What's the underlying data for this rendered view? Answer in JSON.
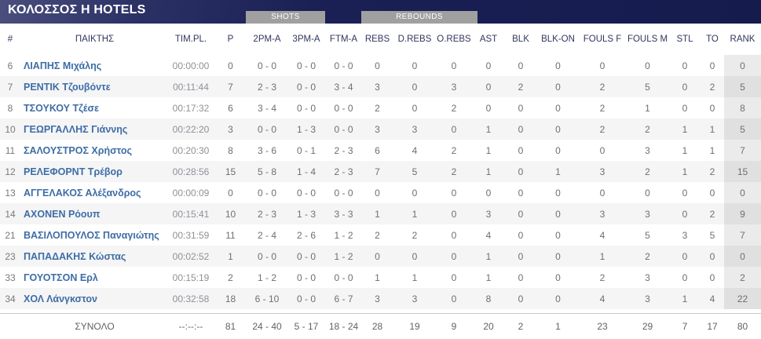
{
  "header": {
    "title": "ΚΟΛΟΣΣΟΣ Η HOTELS",
    "group_labels": {
      "shots": "SHOTS",
      "rebounds": "REBOUNDS"
    }
  },
  "colors": {
    "navy_dark": "#151b4d",
    "navy_light": "#4a4f7d",
    "group_box_gray": "#a0a0a0",
    "player_link_blue": "#3e6da6",
    "row_stripe": "#f5f5f6",
    "rank_band": "#e7e7e8"
  },
  "table": {
    "columns": [
      {
        "key": "num",
        "label": "#"
      },
      {
        "key": "name",
        "label": "ΠΑΙΚΤΗΣ"
      },
      {
        "key": "time",
        "label": "ΤΙΜ.PL."
      },
      {
        "key": "p",
        "label": "P"
      },
      {
        "key": "pm2",
        "label": "2PM-A"
      },
      {
        "key": "pm3",
        "label": "3PM-A"
      },
      {
        "key": "ftm",
        "label": "FTM-A"
      },
      {
        "key": "rebs",
        "label": "REBS"
      },
      {
        "key": "drebs",
        "label": "D.REBS"
      },
      {
        "key": "orebs",
        "label": "O.REBS"
      },
      {
        "key": "ast",
        "label": "AST"
      },
      {
        "key": "blk",
        "label": "BLK"
      },
      {
        "key": "blkon",
        "label": "BLK-ON"
      },
      {
        "key": "foulsf",
        "label": "FOULS F"
      },
      {
        "key": "foulsm",
        "label": "FOULS M"
      },
      {
        "key": "stl",
        "label": "STL"
      },
      {
        "key": "to",
        "label": "TO"
      },
      {
        "key": "rank",
        "label": "RANK"
      }
    ],
    "rows": [
      {
        "num": "6",
        "name": "ΛΙΑΠΗΣ Μιχάλης",
        "time": "00:00:00",
        "p": "0",
        "pm2": "0 - 0",
        "pm3": "0 - 0",
        "ftm": "0 - 0",
        "rebs": "0",
        "drebs": "0",
        "orebs": "0",
        "ast": "0",
        "blk": "0",
        "blkon": "0",
        "foulsf": "0",
        "foulsm": "0",
        "stl": "0",
        "to": "0",
        "rank": "0"
      },
      {
        "num": "7",
        "name": "ΡΕΝΤΙΚ Τζουβόντε",
        "time": "00:11:44",
        "p": "7",
        "pm2": "2 - 3",
        "pm3": "0 - 0",
        "ftm": "3 - 4",
        "rebs": "3",
        "drebs": "0",
        "orebs": "3",
        "ast": "0",
        "blk": "2",
        "blkon": "0",
        "foulsf": "2",
        "foulsm": "5",
        "stl": "0",
        "to": "2",
        "rank": "5"
      },
      {
        "num": "8",
        "name": "ΤΣΟΥΚΟΥ Τζέσε",
        "time": "00:17:32",
        "p": "6",
        "pm2": "3 - 4",
        "pm3": "0 - 0",
        "ftm": "0 - 0",
        "rebs": "2",
        "drebs": "0",
        "orebs": "2",
        "ast": "0",
        "blk": "0",
        "blkon": "0",
        "foulsf": "2",
        "foulsm": "1",
        "stl": "0",
        "to": "0",
        "rank": "8"
      },
      {
        "num": "10",
        "name": "ΓΕΩΡΓΑΛΛΗΣ Γιάννης",
        "time": "00:22:20",
        "p": "3",
        "pm2": "0 - 0",
        "pm3": "1 - 3",
        "ftm": "0 - 0",
        "rebs": "3",
        "drebs": "3",
        "orebs": "0",
        "ast": "1",
        "blk": "0",
        "blkon": "0",
        "foulsf": "2",
        "foulsm": "2",
        "stl": "1",
        "to": "1",
        "rank": "5"
      },
      {
        "num": "11",
        "name": "ΣΑΛΟΥΣΤΡΟΣ Χρήστος",
        "time": "00:20:30",
        "p": "8",
        "pm2": "3 - 6",
        "pm3": "0 - 1",
        "ftm": "2 - 3",
        "rebs": "6",
        "drebs": "4",
        "orebs": "2",
        "ast": "1",
        "blk": "0",
        "blkon": "0",
        "foulsf": "0",
        "foulsm": "3",
        "stl": "1",
        "to": "1",
        "rank": "7"
      },
      {
        "num": "12",
        "name": "ΡΕΛΕΦΟΡΝΤ Τρέβορ",
        "time": "00:28:56",
        "p": "15",
        "pm2": "5 - 8",
        "pm3": "1 - 4",
        "ftm": "2 - 3",
        "rebs": "7",
        "drebs": "5",
        "orebs": "2",
        "ast": "1",
        "blk": "0",
        "blkon": "1",
        "foulsf": "3",
        "foulsm": "2",
        "stl": "1",
        "to": "2",
        "rank": "15"
      },
      {
        "num": "13",
        "name": "ΑΓΓΕΛΑΚΟΣ Αλέξανδρος",
        "time": "00:00:09",
        "p": "0",
        "pm2": "0 - 0",
        "pm3": "0 - 0",
        "ftm": "0 - 0",
        "rebs": "0",
        "drebs": "0",
        "orebs": "0",
        "ast": "0",
        "blk": "0",
        "blkon": "0",
        "foulsf": "0",
        "foulsm": "0",
        "stl": "0",
        "to": "0",
        "rank": "0"
      },
      {
        "num": "14",
        "name": "ΑΧΟΝΕΝ Ρόουπ",
        "time": "00:15:41",
        "p": "10",
        "pm2": "2 - 3",
        "pm3": "1 - 3",
        "ftm": "3 - 3",
        "rebs": "1",
        "drebs": "1",
        "orebs": "0",
        "ast": "3",
        "blk": "0",
        "blkon": "0",
        "foulsf": "3",
        "foulsm": "3",
        "stl": "0",
        "to": "2",
        "rank": "9"
      },
      {
        "num": "21",
        "name": "ΒΑΣΙΛΟΠΟΥΛΟΣ Παναγιώτης",
        "time": "00:31:59",
        "p": "11",
        "pm2": "2 - 4",
        "pm3": "2 - 6",
        "ftm": "1 - 2",
        "rebs": "2",
        "drebs": "2",
        "orebs": "0",
        "ast": "4",
        "blk": "0",
        "blkon": "0",
        "foulsf": "4",
        "foulsm": "5",
        "stl": "3",
        "to": "5",
        "rank": "7"
      },
      {
        "num": "23",
        "name": "ΠΑΠΑΔΑΚΗΣ Κώστας",
        "time": "00:02:52",
        "p": "1",
        "pm2": "0 - 0",
        "pm3": "0 - 0",
        "ftm": "1 - 2",
        "rebs": "0",
        "drebs": "0",
        "orebs": "0",
        "ast": "1",
        "blk": "0",
        "blkon": "0",
        "foulsf": "1",
        "foulsm": "2",
        "stl": "0",
        "to": "0",
        "rank": "0"
      },
      {
        "num": "33",
        "name": "ΓΟΥΟΤΣΟΝ Ερλ",
        "time": "00:15:19",
        "p": "2",
        "pm2": "1 - 2",
        "pm3": "0 - 0",
        "ftm": "0 - 0",
        "rebs": "1",
        "drebs": "1",
        "orebs": "0",
        "ast": "1",
        "blk": "0",
        "blkon": "0",
        "foulsf": "2",
        "foulsm": "3",
        "stl": "0",
        "to": "0",
        "rank": "2"
      },
      {
        "num": "34",
        "name": "ΧΟΛ Λάνγκστον",
        "time": "00:32:58",
        "p": "18",
        "pm2": "6 - 10",
        "pm3": "0 - 0",
        "ftm": "6 - 7",
        "rebs": "3",
        "drebs": "3",
        "orebs": "0",
        "ast": "8",
        "blk": "0",
        "blkon": "0",
        "foulsf": "4",
        "foulsm": "3",
        "stl": "1",
        "to": "4",
        "rank": "22"
      }
    ],
    "totals": {
      "num": "",
      "name": "ΣΥΝΟΛΟ",
      "time": "--:--:--",
      "p": "81",
      "pm2": "24 - 40",
      "pm3": "5 - 17",
      "ftm": "18 - 24",
      "rebs": "28",
      "drebs": "19",
      "orebs": "9",
      "ast": "20",
      "blk": "2",
      "blkon": "1",
      "foulsf": "23",
      "foulsm": "29",
      "stl": "7",
      "to": "17",
      "rank": "80"
    }
  }
}
